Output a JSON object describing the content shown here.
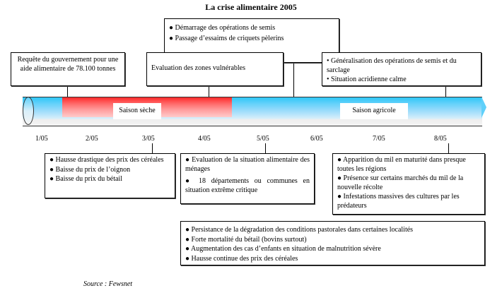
{
  "title": "La crise alimentaire 2005",
  "top_boxes": {
    "middle": [
      "● Démarrage des opérations de semis",
      "● Passage d’essaims de criquets pèlerins"
    ],
    "request": "Requête du gouvernement pour une aide alimentaire de 78.100 tonnes",
    "evaluation": "Evaluation des zones vulnérables",
    "generalisation": [
      "• Généralisation des opérations de semis et du sarclage",
      "• Situation acridienne calme"
    ]
  },
  "seasons": {
    "dry": "Saison sèche",
    "agricultural": "Saison agricole"
  },
  "months": [
    "1/05",
    "2/05",
    "3/05",
    "4/05",
    "5/05",
    "6/05",
    "7/05",
    "8/05"
  ],
  "bottom_boxes": {
    "march": [
      "● Hausse drastique des prix des céréales",
      "● Baisse du prix de l’oignon",
      "● Baisse du prix du bétail"
    ],
    "may": [
      "●  Evaluation de la situation alimentaire des ménages",
      "● 18 départements ou communes en situation extrême critique"
    ],
    "august": [
      "● Apparition du mil en maturité dans presque toutes les régions",
      "● Présence sur certains marchés du mil de la nouvelle récolte",
      "● Infestations massives des cultures par les prédateurs"
    ],
    "general": [
      "● Persistance de la dégradation des conditions pastorales dans certaines localités",
      "● Forte mortalité du bétail (bovins surtout)",
      "● Augmentation des cas d’enfants en situation de malnutrition sévère",
      "● Hausse continue des prix des céréales"
    ]
  },
  "source": "Source : Fewsnet",
  "colors": {
    "dry_season": "#ff2a2a",
    "agricultural_season": "#2ec7f7"
  }
}
